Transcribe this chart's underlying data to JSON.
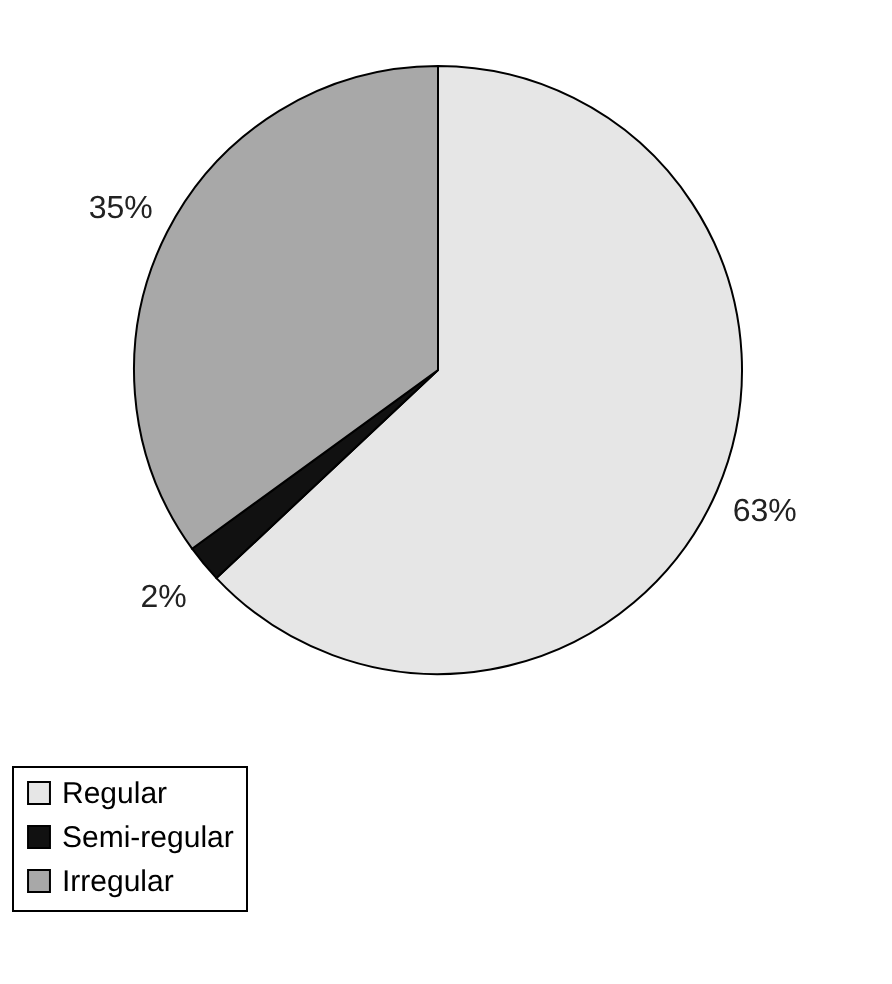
{
  "chart_data": {
    "type": "pie",
    "categories": [
      "Regular",
      "Semi-regular",
      "Irregular"
    ],
    "values": [
      63,
      2,
      35
    ],
    "value_labels": [
      "63%",
      "2%",
      "35%"
    ],
    "colors": [
      "#e6e6e6",
      "#111111",
      "#a8a8a8"
    ],
    "legend": "bottom"
  }
}
